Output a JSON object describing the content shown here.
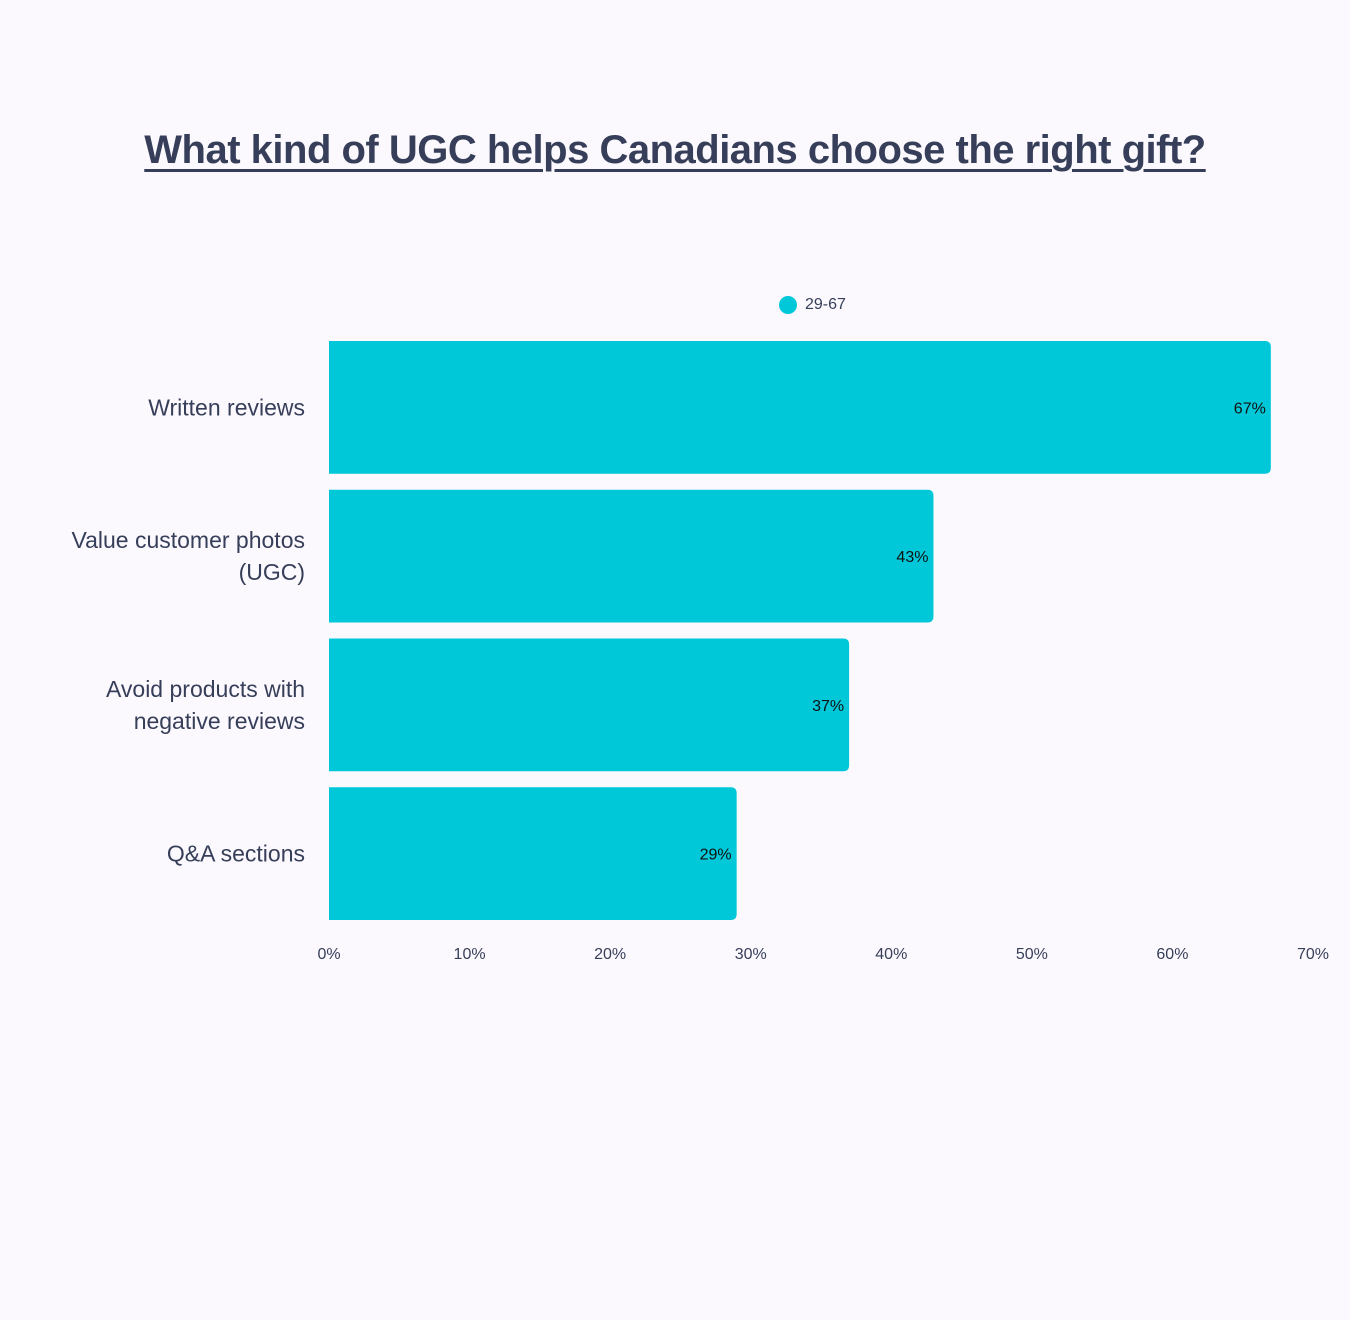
{
  "chart_data": {
    "type": "bar",
    "orientation": "horizontal",
    "title": "What kind of UGC helps Canadians choose the right gift?",
    "categories": [
      [
        "Written reviews"
      ],
      [
        "Value customer photos",
        "(UGC)"
      ],
      [
        "Avoid products with",
        "negative reviews"
      ],
      [
        "Q&A sections"
      ]
    ],
    "series": [
      {
        "name": "29-67",
        "values": [
          67,
          43,
          37,
          29
        ],
        "color": "#00c8d9"
      }
    ],
    "data_labels": [
      "67%",
      "43%",
      "37%",
      "29%"
    ],
    "xlim": [
      0,
      70
    ],
    "xticks": [
      0,
      10,
      20,
      30,
      40,
      50,
      60,
      70
    ],
    "xtick_labels": [
      "0%",
      "10%",
      "20%",
      "30%",
      "40%",
      "50%",
      "60%",
      "70%"
    ],
    "legend_position": "top-center",
    "grid": false
  }
}
